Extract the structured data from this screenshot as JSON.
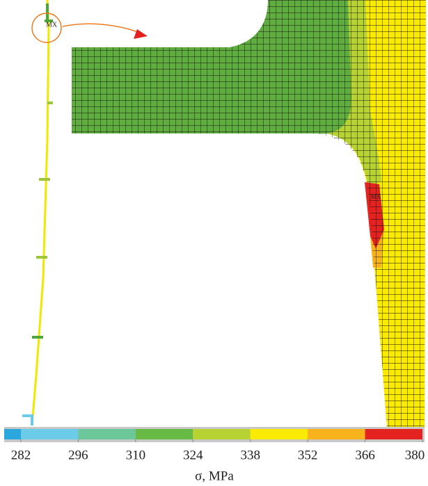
{
  "chart_data": {
    "type": "colorbar",
    "annotation": "MX",
    "xlabel": "σ, MPa",
    "bins": [
      282,
      296,
      310,
      324,
      338,
      352,
      366,
      380
    ],
    "colors": [
      "#6ccbe8",
      "#6cc79a",
      "#67bb45",
      "#b7d333",
      "#fbeb00",
      "#f8b21b",
      "#e42320"
    ],
    "xlim": [
      282,
      380
    ],
    "xticks": [
      282,
      296,
      310,
      324,
      338,
      352,
      366,
      380
    ]
  }
}
